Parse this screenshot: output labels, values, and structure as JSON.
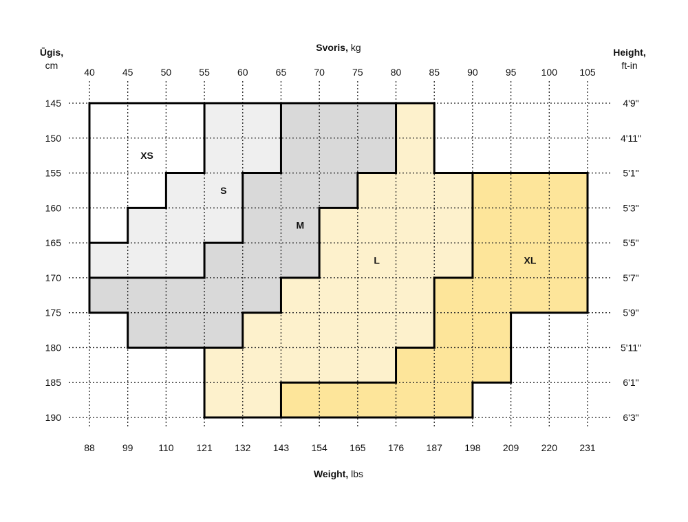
{
  "chart_data": {
    "type": "heatmap",
    "title_top": {
      "bold": "Svoris,",
      "unit": " kg"
    },
    "title_bottom": {
      "bold": "Weight,",
      "unit": " lbs"
    },
    "title_left": {
      "bold": "Ūgis,",
      "unit": "cm"
    },
    "title_right": {
      "bold": "Height,",
      "unit": "ft-in"
    },
    "x_kg_ticks": [
      "40",
      "45",
      "50",
      "55",
      "60",
      "65",
      "70",
      "75",
      "80",
      "85",
      "90",
      "95",
      "100",
      "105"
    ],
    "x_lbs_ticks": [
      "88",
      "99",
      "110",
      "121",
      "132",
      "143",
      "154",
      "165",
      "176",
      "187",
      "198",
      "209",
      "220",
      "231"
    ],
    "y_cm_ticks": [
      "145",
      "150",
      "155",
      "160",
      "165",
      "170",
      "175",
      "180",
      "185",
      "190"
    ],
    "y_ftin_ticks": [
      "4'9\"",
      "4'11\"",
      "5'1\"",
      "5'3\"",
      "5'5\"",
      "5'7\"",
      "5'9\"",
      "5'11\"",
      "6'1\"",
      "6'3\""
    ],
    "xlim_kg": [
      40,
      105
    ],
    "ylim_cm": [
      145,
      190
    ],
    "grid": true,
    "sizes": [
      {
        "name": "XS",
        "color": "#ffffff",
        "bands": [
          {
            "cm": [
              145,
              150
            ],
            "kg": [
              40,
              55
            ]
          },
          {
            "cm": [
              150,
              155
            ],
            "kg": [
              40,
              55
            ]
          },
          {
            "cm": [
              155,
              160
            ],
            "kg": [
              40,
              50
            ]
          },
          {
            "cm": [
              160,
              165
            ],
            "kg": [
              40,
              45
            ]
          }
        ]
      },
      {
        "name": "S",
        "color": "#efefef",
        "bands": [
          {
            "cm": [
              145,
              150
            ],
            "kg": [
              55,
              65
            ]
          },
          {
            "cm": [
              150,
              155
            ],
            "kg": [
              55,
              65
            ]
          },
          {
            "cm": [
              155,
              160
            ],
            "kg": [
              50,
              60
            ]
          },
          {
            "cm": [
              160,
              165
            ],
            "kg": [
              45,
              60
            ]
          },
          {
            "cm": [
              165,
              170
            ],
            "kg": [
              40,
              55
            ]
          }
        ]
      },
      {
        "name": "M",
        "color": "#d9d9d9",
        "bands": [
          {
            "cm": [
              145,
              150
            ],
            "kg": [
              65,
              80
            ]
          },
          {
            "cm": [
              150,
              155
            ],
            "kg": [
              65,
              80
            ]
          },
          {
            "cm": [
              155,
              160
            ],
            "kg": [
              60,
              75
            ]
          },
          {
            "cm": [
              160,
              165
            ],
            "kg": [
              60,
              70
            ]
          },
          {
            "cm": [
              165,
              170
            ],
            "kg": [
              55,
              70
            ]
          },
          {
            "cm": [
              170,
              175
            ],
            "kg": [
              40,
              65
            ]
          },
          {
            "cm": [
              175,
              180
            ],
            "kg": [
              45,
              60
            ]
          }
        ]
      },
      {
        "name": "L",
        "color": "#fdf1cc",
        "bands": [
          {
            "cm": [
              145,
              150
            ],
            "kg": [
              80,
              85
            ]
          },
          {
            "cm": [
              150,
              155
            ],
            "kg": [
              80,
              85
            ]
          },
          {
            "cm": [
              155,
              160
            ],
            "kg": [
              75,
              90
            ]
          },
          {
            "cm": [
              160,
              165
            ],
            "kg": [
              70,
              90
            ]
          },
          {
            "cm": [
              165,
              170
            ],
            "kg": [
              70,
              90
            ]
          },
          {
            "cm": [
              170,
              175
            ],
            "kg": [
              65,
              85
            ]
          },
          {
            "cm": [
              175,
              180
            ],
            "kg": [
              60,
              85
            ]
          },
          {
            "cm": [
              180,
              185
            ],
            "kg": [
              55,
              80
            ]
          },
          {
            "cm": [
              185,
              190
            ],
            "kg": [
              55,
              65
            ]
          }
        ]
      },
      {
        "name": "XL",
        "color": "#fde59a",
        "bands": [
          {
            "cm": [
              155,
              160
            ],
            "kg": [
              90,
              105
            ]
          },
          {
            "cm": [
              160,
              165
            ],
            "kg": [
              90,
              105
            ]
          },
          {
            "cm": [
              165,
              170
            ],
            "kg": [
              90,
              105
            ]
          },
          {
            "cm": [
              170,
              175
            ],
            "kg": [
              85,
              105
            ]
          },
          {
            "cm": [
              175,
              180
            ],
            "kg": [
              85,
              95
            ]
          },
          {
            "cm": [
              180,
              185
            ],
            "kg": [
              80,
              95
            ]
          },
          {
            "cm": [
              185,
              190
            ],
            "kg": [
              65,
              90
            ]
          }
        ]
      }
    ]
  }
}
